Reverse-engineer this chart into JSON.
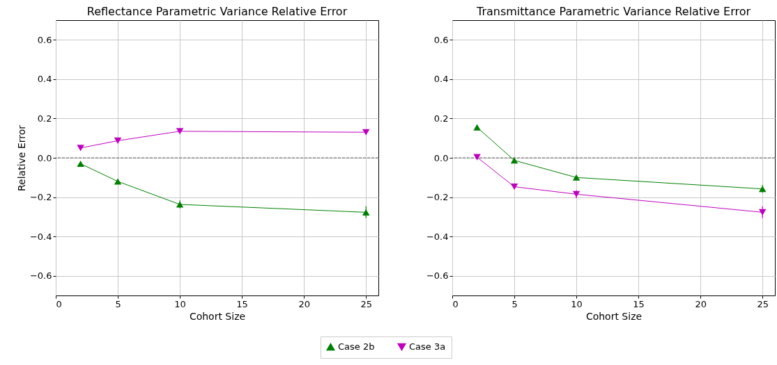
{
  "chart_data": [
    {
      "type": "line",
      "title": "Reflectance Parametric Variance Relative Error",
      "xlabel": "Cohort Size",
      "ylabel": "Relative Error",
      "x": [
        2,
        5,
        10,
        25
      ],
      "series": [
        {
          "name": "Case 2b",
          "color": "#008000",
          "marker": "triangle-up",
          "values": [
            -0.03,
            -0.12,
            -0.237,
            -0.277
          ],
          "errors": [
            0.01,
            0.01,
            0.02,
            0.03
          ]
        },
        {
          "name": "Case 3a",
          "color": "#bf00bf",
          "marker": "triangle-down",
          "values": [
            0.05,
            0.087,
            0.135,
            0.13
          ]
        }
      ],
      "xlim": [
        0,
        26
      ],
      "xticks": [
        0,
        5,
        10,
        15,
        20,
        25
      ],
      "ylim": [
        -0.7,
        0.7
      ],
      "yticks": [
        -0.6,
        -0.4,
        -0.2,
        {
          "value": 0,
          "label": "0.0"
        },
        0.2,
        0.4,
        0.6
      ],
      "ref_lines": [
        {
          "axis": "y",
          "value": 0,
          "color": "#404040",
          "line_style": "dashed"
        }
      ],
      "grid": true,
      "legend": "bottom"
    },
    {
      "type": "line",
      "title": "Transmittance Parametric Variance Relative Error",
      "xlabel": "Cohort Size",
      "x": [
        2,
        5,
        10,
        25
      ],
      "series": [
        {
          "name": "Case 2b",
          "color": "#008000",
          "marker": "triangle-up",
          "values": [
            0.155,
            -0.013,
            -0.1,
            -0.158
          ],
          "errors": [
            null,
            null,
            null,
            0.02
          ]
        },
        {
          "name": "Case 3a",
          "color": "#bf00bf",
          "marker": "triangle-down",
          "values": [
            0.003,
            -0.147,
            -0.185,
            -0.277
          ],
          "errors": [
            0.01,
            0.01,
            0.02,
            0.03
          ]
        }
      ],
      "xlim": [
        0,
        26
      ],
      "xticks": [
        0,
        5,
        10,
        15,
        20,
        25
      ],
      "ylim": [
        -0.7,
        0.7
      ],
      "yticks": [
        -0.6,
        -0.4,
        -0.2,
        {
          "value": 0,
          "label": "0.0"
        },
        0.2,
        0.4,
        0.6
      ],
      "ref_lines": [
        {
          "axis": "y",
          "value": 0,
          "color": "#404040",
          "line_style": "dashed"
        }
      ],
      "grid": true
    }
  ]
}
